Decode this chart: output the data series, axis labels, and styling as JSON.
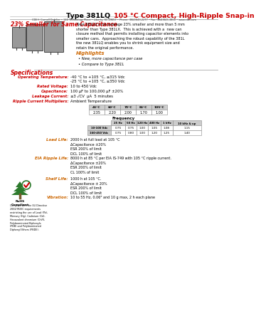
{
  "title_black": "Type 381LQ ",
  "title_red": "105 °C Compact, High-Ripple Snap-in",
  "subtitle": "23% Smaller for Same Capacitance",
  "bg_color": "#ffffff",
  "red_color": "#cc0000",
  "orange_color": "#cc6600",
  "dark_orange": "#cc6600",
  "body_text": "Type 381LQ is on average 23% smaller and more than 5 mm\nshorter than Type 381LX.  This is achieved with a  new can\nclosure method that permits installing capacitor elements into\nsmaller cans.  Approaching the robust capability of the 381L\nthe new 381LQ enables you to shrink equipment size and\nretain the original performance.",
  "highlights_title": "Highlights",
  "highlights": [
    "New, more capacitance per case",
    "Compare to Type 381L"
  ],
  "specs_title": "Specifications",
  "specs": [
    [
      "Operating Temperature:",
      "-40 °C to +105 °C, ≤315 Vdc\n-25 °C to +105 °C, ≥350 Vdc"
    ],
    [
      "Rated Voltage:",
      "10 to 450 Vdc"
    ],
    [
      "Capacitance:",
      "100 µF to 100,000 µF ±20%"
    ],
    [
      "Leakage Current:",
      "≤3 √CV  µA  5 minutes"
    ],
    [
      "Ripple Current Multipliers:",
      "Ambient Temperature"
    ]
  ],
  "amb_temp_headers": [
    "45°C",
    "60°C",
    "70°C",
    "85°C",
    "105°C"
  ],
  "amb_temp_values": [
    "2.35",
    "2.20",
    "2.00",
    "1.70",
    "1.00"
  ],
  "freq_header": "Frequency",
  "freq_cols": [
    "25 Hz",
    "50 Hz",
    "120 Hz",
    "400 Hz",
    "1 kHz",
    "10 kHz & up"
  ],
  "freq_rows": [
    [
      "10-100 Vdc",
      "0.75",
      "0.75",
      "1.00",
      "1.05",
      "1.08",
      "1.15"
    ],
    [
      "160-450 Vdc",
      "0.75",
      "0.80",
      "1.00",
      "1.20",
      "1.25",
      "1.40"
    ]
  ],
  "load_life_title": "Load Life:",
  "load_life": "2000 h at full load at 105 °C\nΔCapacitance ±20%\nESR 200% of limit\nDCL 100% of limit",
  "eia_title": "EIA Ripple Life:",
  "eia": "8000 h at 85 °C per EIA IS-749 with 105 °C ripple current.\nΔCapacitance ±20%\nESR 200% of limit\nCL 100% of limit",
  "shelf_title": "Shelf Life:",
  "shelf": "1000 h at 105 °C.\nΔCapacitance ± 20%\nESR 200% of limit\nDCL 100% of limit",
  "vib_title": "Vibration:",
  "vib": "10 to 55 Hz, 0.06\" and 10 g max, 2 h each plane",
  "footer": "CDE® Cornell Dubilier • 140 Technology Place • Liberty, SC 29657 • Phone: (864)843-2277 • Fax: (864)843-3800 • www.cde.com",
  "rohs_compliant": "RoHS\nCompliant",
  "rohs_note": "Complies with the EU Directive\n2002/95/EC requirements\nrestricting the use of Lead (Pb),\nMercury (Hg), Cadmium (Cd),\nHexavalent chromium (CrVI),\nPolybrominated Biphenyls\n(PBB) and Polybrominated\nDiphenyl Ethers (PBDE)."
}
